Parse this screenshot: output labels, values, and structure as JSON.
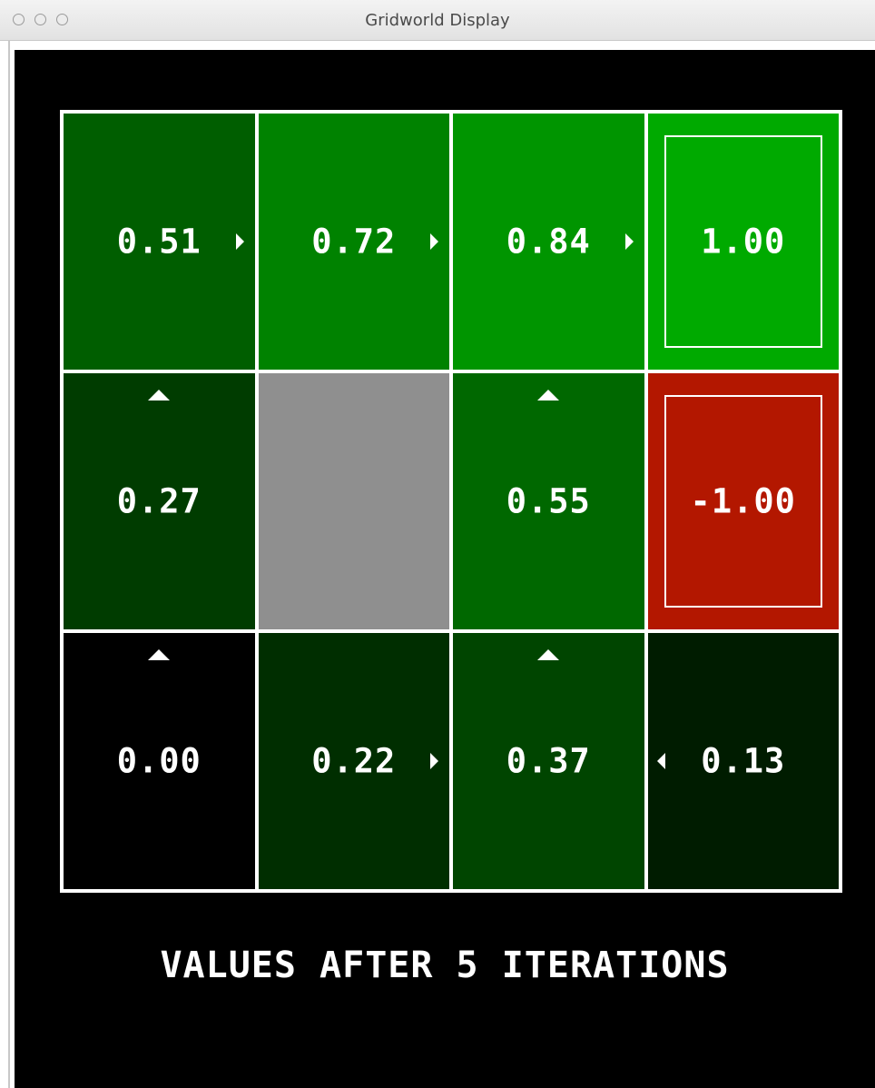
{
  "window": {
    "title": "Gridworld Display"
  },
  "grid": {
    "rows": 3,
    "cols": 4,
    "cells": [
      {
        "row": 0,
        "col": 0,
        "value": "0.51",
        "color": "#005e00",
        "arrow": "east",
        "terminal": false,
        "wall": false
      },
      {
        "row": 0,
        "col": 1,
        "value": "0.72",
        "color": "#008200",
        "arrow": "east",
        "terminal": false,
        "wall": false
      },
      {
        "row": 0,
        "col": 2,
        "value": "0.84",
        "color": "#009500",
        "arrow": "east",
        "terminal": false,
        "wall": false
      },
      {
        "row": 0,
        "col": 3,
        "value": "1.00",
        "color": "#00aa00",
        "arrow": "",
        "terminal": true,
        "wall": false
      },
      {
        "row": 1,
        "col": 0,
        "value": "0.27",
        "color": "#003c00",
        "arrow": "north",
        "terminal": false,
        "wall": false
      },
      {
        "row": 1,
        "col": 1,
        "value": "",
        "color": "#8f8f8f",
        "arrow": "",
        "terminal": false,
        "wall": true
      },
      {
        "row": 1,
        "col": 2,
        "value": "0.55",
        "color": "#006800",
        "arrow": "north",
        "terminal": false,
        "wall": false
      },
      {
        "row": 1,
        "col": 3,
        "value": "-1.00",
        "color": "#b31700",
        "arrow": "",
        "terminal": true,
        "wall": false
      },
      {
        "row": 2,
        "col": 0,
        "value": "0.00",
        "color": "#000000",
        "arrow": "north",
        "terminal": false,
        "wall": false
      },
      {
        "row": 2,
        "col": 1,
        "value": "0.22",
        "color": "#002e00",
        "arrow": "east",
        "terminal": false,
        "wall": false
      },
      {
        "row": 2,
        "col": 2,
        "value": "0.37",
        "color": "#004500",
        "arrow": "north",
        "terminal": false,
        "wall": false
      },
      {
        "row": 2,
        "col": 3,
        "value": "0.13",
        "color": "#001c00",
        "arrow": "west",
        "terminal": false,
        "wall": false
      }
    ]
  },
  "caption": "VALUES AFTER 5 ITERATIONS"
}
